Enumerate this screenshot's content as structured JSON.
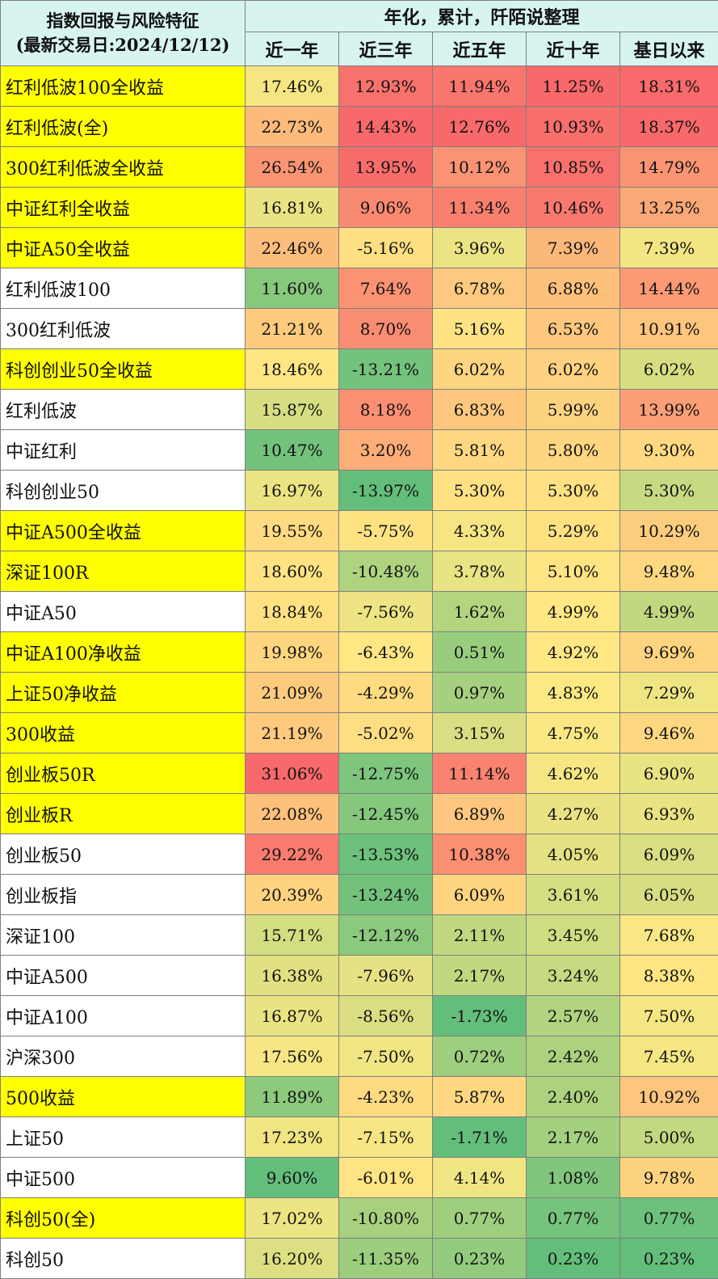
{
  "header": {
    "title_line1": "指数回报与风险特征",
    "title_line2": "(最新交易日:2024/12/12)",
    "group_label": "年化，累计，阡陌说整理",
    "columns": [
      "近一年",
      "近三年",
      "近五年",
      "近十年",
      "基日以来"
    ]
  },
  "colors": {
    "header_bg": "#d8f4f1",
    "highlight_name_bg": "#ffff00",
    "plain_name_bg": "#ffffff",
    "heatmap_low": "#63be7b",
    "heatmap_mid": "#ffe984",
    "heatmap_high": "#f8696b"
  },
  "rows": [
    {
      "name": "红利低波100全收益",
      "highlight": true,
      "values": [
        "17.46%",
        "12.93%",
        "11.94%",
        "11.25%",
        "18.31%"
      ]
    },
    {
      "name": "红利低波(全)",
      "highlight": true,
      "values": [
        "22.73%",
        "14.43%",
        "12.76%",
        "10.93%",
        "18.37%"
      ]
    },
    {
      "name": "300红利低波全收益",
      "highlight": true,
      "values": [
        "26.54%",
        "13.95%",
        "10.12%",
        "10.85%",
        "14.79%"
      ]
    },
    {
      "name": "中证红利全收益",
      "highlight": true,
      "values": [
        "16.81%",
        "9.06%",
        "11.34%",
        "10.46%",
        "13.25%"
      ]
    },
    {
      "name": "中证A50全收益",
      "highlight": true,
      "values": [
        "22.46%",
        "-5.16%",
        "3.96%",
        "7.39%",
        "7.39%"
      ]
    },
    {
      "name": "红利低波100",
      "highlight": false,
      "values": [
        "11.60%",
        "7.64%",
        "6.78%",
        "6.88%",
        "14.44%"
      ]
    },
    {
      "name": "300红利低波",
      "highlight": false,
      "values": [
        "21.21%",
        "8.70%",
        "5.16%",
        "6.53%",
        "10.91%"
      ]
    },
    {
      "name": "科创创业50全收益",
      "highlight": true,
      "values": [
        "18.46%",
        "-13.21%",
        "6.02%",
        "6.02%",
        "6.02%"
      ]
    },
    {
      "name": "红利低波",
      "highlight": false,
      "values": [
        "15.87%",
        "8.18%",
        "6.83%",
        "5.99%",
        "13.99%"
      ]
    },
    {
      "name": "中证红利",
      "highlight": false,
      "values": [
        "10.47%",
        "3.20%",
        "5.81%",
        "5.80%",
        "9.30%"
      ]
    },
    {
      "name": "科创创业50",
      "highlight": false,
      "values": [
        "16.97%",
        "-13.97%",
        "5.30%",
        "5.30%",
        "5.30%"
      ]
    },
    {
      "name": "中证A500全收益",
      "highlight": true,
      "values": [
        "19.55%",
        "-5.75%",
        "4.33%",
        "5.29%",
        "10.29%"
      ]
    },
    {
      "name": "深证100R",
      "highlight": true,
      "values": [
        "18.60%",
        "-10.48%",
        "3.78%",
        "5.10%",
        "9.48%"
      ]
    },
    {
      "name": "中证A50",
      "highlight": false,
      "values": [
        "18.84%",
        "-7.56%",
        "1.62%",
        "4.99%",
        "4.99%"
      ]
    },
    {
      "name": "中证A100净收益",
      "highlight": true,
      "values": [
        "19.98%",
        "-6.43%",
        "0.51%",
        "4.92%",
        "9.69%"
      ]
    },
    {
      "name": "上证50净收益",
      "highlight": true,
      "values": [
        "21.09%",
        "-4.29%",
        "0.97%",
        "4.83%",
        "7.29%"
      ]
    },
    {
      "name": "300收益",
      "highlight": true,
      "values": [
        "21.19%",
        "-5.02%",
        "3.15%",
        "4.75%",
        "9.46%"
      ]
    },
    {
      "name": "创业板50R",
      "highlight": true,
      "values": [
        "31.06%",
        "-12.75%",
        "11.14%",
        "4.62%",
        "6.90%"
      ]
    },
    {
      "name": "创业板R",
      "highlight": true,
      "values": [
        "22.08%",
        "-12.45%",
        "6.89%",
        "4.27%",
        "6.93%"
      ]
    },
    {
      "name": "创业板50",
      "highlight": false,
      "values": [
        "29.22%",
        "-13.53%",
        "10.38%",
        "4.05%",
        "6.09%"
      ]
    },
    {
      "name": "创业板指",
      "highlight": false,
      "values": [
        "20.39%",
        "-13.24%",
        "6.09%",
        "3.61%",
        "6.05%"
      ]
    },
    {
      "name": "深证100",
      "highlight": false,
      "values": [
        "15.71%",
        "-12.12%",
        "2.11%",
        "3.45%",
        "7.68%"
      ]
    },
    {
      "name": "中证A500",
      "highlight": false,
      "values": [
        "16.38%",
        "-7.96%",
        "2.17%",
        "3.24%",
        "8.38%"
      ]
    },
    {
      "name": "中证A100",
      "highlight": false,
      "values": [
        "16.87%",
        "-8.56%",
        "-1.73%",
        "2.57%",
        "7.50%"
      ]
    },
    {
      "name": "沪深300",
      "highlight": false,
      "values": [
        "17.56%",
        "-7.50%",
        "0.72%",
        "2.42%",
        "7.45%"
      ]
    },
    {
      "name": "500收益",
      "highlight": true,
      "values": [
        "11.89%",
        "-4.23%",
        "5.87%",
        "2.40%",
        "10.92%"
      ]
    },
    {
      "name": "上证50",
      "highlight": false,
      "values": [
        "17.23%",
        "-7.15%",
        "-1.71%",
        "2.17%",
        "5.00%"
      ]
    },
    {
      "name": "中证500",
      "highlight": false,
      "values": [
        "9.60%",
        "-6.01%",
        "4.14%",
        "1.08%",
        "9.78%"
      ]
    },
    {
      "name": "科创50(全)",
      "highlight": true,
      "values": [
        "17.02%",
        "-10.80%",
        "0.77%",
        "0.77%",
        "0.77%"
      ]
    },
    {
      "name": "科创50",
      "highlight": false,
      "values": [
        "16.20%",
        "-11.35%",
        "0.23%",
        "0.23%",
        "0.23%"
      ]
    }
  ]
}
